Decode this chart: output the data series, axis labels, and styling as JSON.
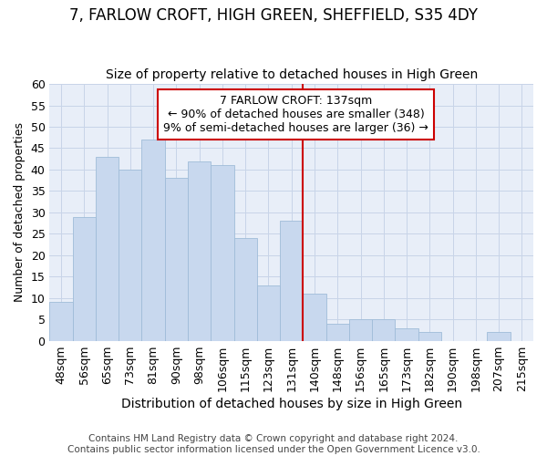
{
  "title1": "7, FARLOW CROFT, HIGH GREEN, SHEFFIELD, S35 4DY",
  "title2": "Size of property relative to detached houses in High Green",
  "xlabel": "Distribution of detached houses by size in High Green",
  "ylabel": "Number of detached properties",
  "categories": [
    "48sqm",
    "56sqm",
    "65sqm",
    "73sqm",
    "81sqm",
    "90sqm",
    "98sqm",
    "106sqm",
    "115sqm",
    "123sqm",
    "131sqm",
    "140sqm",
    "148sqm",
    "156sqm",
    "165sqm",
    "173sqm",
    "182sqm",
    "190sqm",
    "198sqm",
    "207sqm",
    "215sqm"
  ],
  "values": [
    9,
    29,
    43,
    40,
    47,
    38,
    42,
    41,
    24,
    13,
    28,
    11,
    4,
    5,
    5,
    3,
    2,
    0,
    0,
    2,
    0
  ],
  "bar_color": "#c8d8ee",
  "bar_edge_color": "#a0bcd8",
  "annotation_text": "7 FARLOW CROFT: 137sqm\n← 90% of detached houses are smaller (348)\n9% of semi-detached houses are larger (36) →",
  "annotation_box_color": "#ffffff",
  "annotation_border_color": "#cc0000",
  "vline_color": "#cc0000",
  "vline_x_index": 11,
  "ylim": [
    0,
    60
  ],
  "yticks": [
    0,
    5,
    10,
    15,
    20,
    25,
    30,
    35,
    40,
    45,
    50,
    55,
    60
  ],
  "grid_color": "#c8d4e8",
  "bg_color": "#e8eef8",
  "footer": "Contains HM Land Registry data © Crown copyright and database right 2024.\nContains public sector information licensed under the Open Government Licence v3.0.",
  "title1_fontsize": 12,
  "title2_fontsize": 10,
  "xlabel_fontsize": 10,
  "ylabel_fontsize": 9,
  "tick_fontsize": 9,
  "footer_fontsize": 7.5
}
